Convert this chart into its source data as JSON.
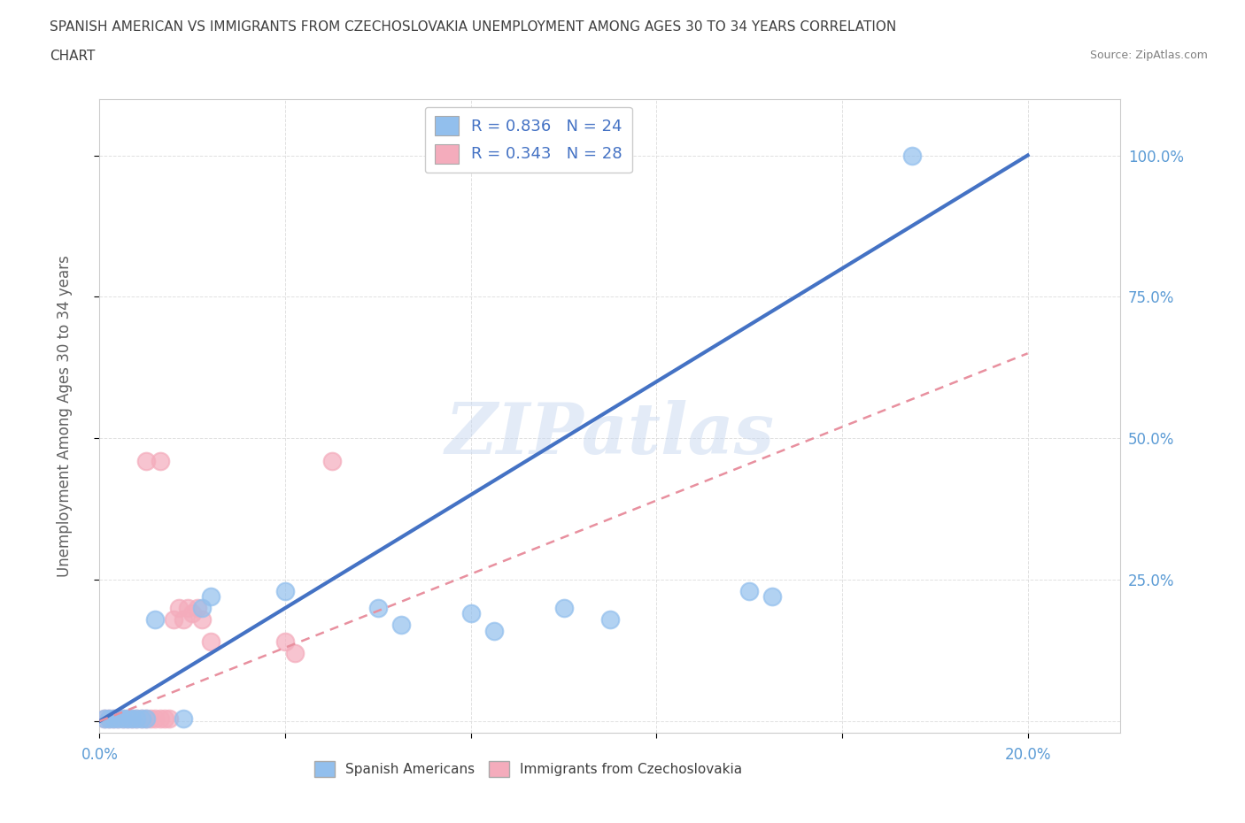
{
  "title_line1": "SPANISH AMERICAN VS IMMIGRANTS FROM CZECHOSLOVAKIA UNEMPLOYMENT AMONG AGES 30 TO 34 YEARS CORRELATION",
  "title_line2": "CHART",
  "source_text": "Source: ZipAtlas.com",
  "ylabel": "Unemployment Among Ages 30 to 34 years",
  "xlim": [
    0.0,
    0.22
  ],
  "ylim": [
    -0.02,
    1.1
  ],
  "x_ticks": [
    0.0,
    0.04,
    0.08,
    0.12,
    0.16,
    0.2
  ],
  "y_ticks": [
    0.0,
    0.25,
    0.5,
    0.75,
    1.0
  ],
  "watermark": "ZIPatlas",
  "legend_blue_R": "0.836",
  "legend_blue_N": "24",
  "legend_pink_R": "0.343",
  "legend_pink_N": "28",
  "blue_color": "#92BFED",
  "pink_color": "#F4ACBC",
  "blue_line_color": "#4472C4",
  "pink_line_color": "#F4ACBC",
  "blue_scatter": [
    [
      0.001,
      0.005
    ],
    [
      0.002,
      0.005
    ],
    [
      0.003,
      0.005
    ],
    [
      0.004,
      0.005
    ],
    [
      0.005,
      0.005
    ],
    [
      0.006,
      0.005
    ],
    [
      0.007,
      0.005
    ],
    [
      0.008,
      0.005
    ],
    [
      0.009,
      0.005
    ],
    [
      0.01,
      0.005
    ],
    [
      0.012,
      0.18
    ],
    [
      0.018,
      0.005
    ],
    [
      0.022,
      0.2
    ],
    [
      0.024,
      0.22
    ],
    [
      0.04,
      0.23
    ],
    [
      0.06,
      0.2
    ],
    [
      0.065,
      0.17
    ],
    [
      0.08,
      0.19
    ],
    [
      0.085,
      0.16
    ],
    [
      0.1,
      0.2
    ],
    [
      0.11,
      0.18
    ],
    [
      0.14,
      0.23
    ],
    [
      0.145,
      0.22
    ],
    [
      0.175,
      1.0
    ]
  ],
  "pink_scatter": [
    [
      0.001,
      0.005
    ],
    [
      0.002,
      0.005
    ],
    [
      0.003,
      0.005
    ],
    [
      0.004,
      0.005
    ],
    [
      0.005,
      0.005
    ],
    [
      0.006,
      0.005
    ],
    [
      0.007,
      0.005
    ],
    [
      0.008,
      0.005
    ],
    [
      0.009,
      0.005
    ],
    [
      0.01,
      0.005
    ],
    [
      0.011,
      0.005
    ],
    [
      0.012,
      0.005
    ],
    [
      0.013,
      0.005
    ],
    [
      0.014,
      0.005
    ],
    [
      0.015,
      0.005
    ],
    [
      0.01,
      0.46
    ],
    [
      0.013,
      0.46
    ],
    [
      0.016,
      0.18
    ],
    [
      0.017,
      0.2
    ],
    [
      0.018,
      0.18
    ],
    [
      0.019,
      0.2
    ],
    [
      0.02,
      0.19
    ],
    [
      0.021,
      0.2
    ],
    [
      0.022,
      0.18
    ],
    [
      0.024,
      0.14
    ],
    [
      0.04,
      0.14
    ],
    [
      0.042,
      0.12
    ],
    [
      0.05,
      0.46
    ]
  ],
  "blue_trend_x": [
    0.0,
    0.2
  ],
  "blue_trend_y": [
    0.0,
    1.0
  ],
  "pink_trend_x": [
    0.0,
    0.2
  ],
  "pink_trend_y": [
    0.0,
    0.65
  ],
  "grid_color": "#DDDDDD",
  "background_color": "#FFFFFF",
  "title_color": "#404040",
  "tick_color": "#5B9BD5"
}
